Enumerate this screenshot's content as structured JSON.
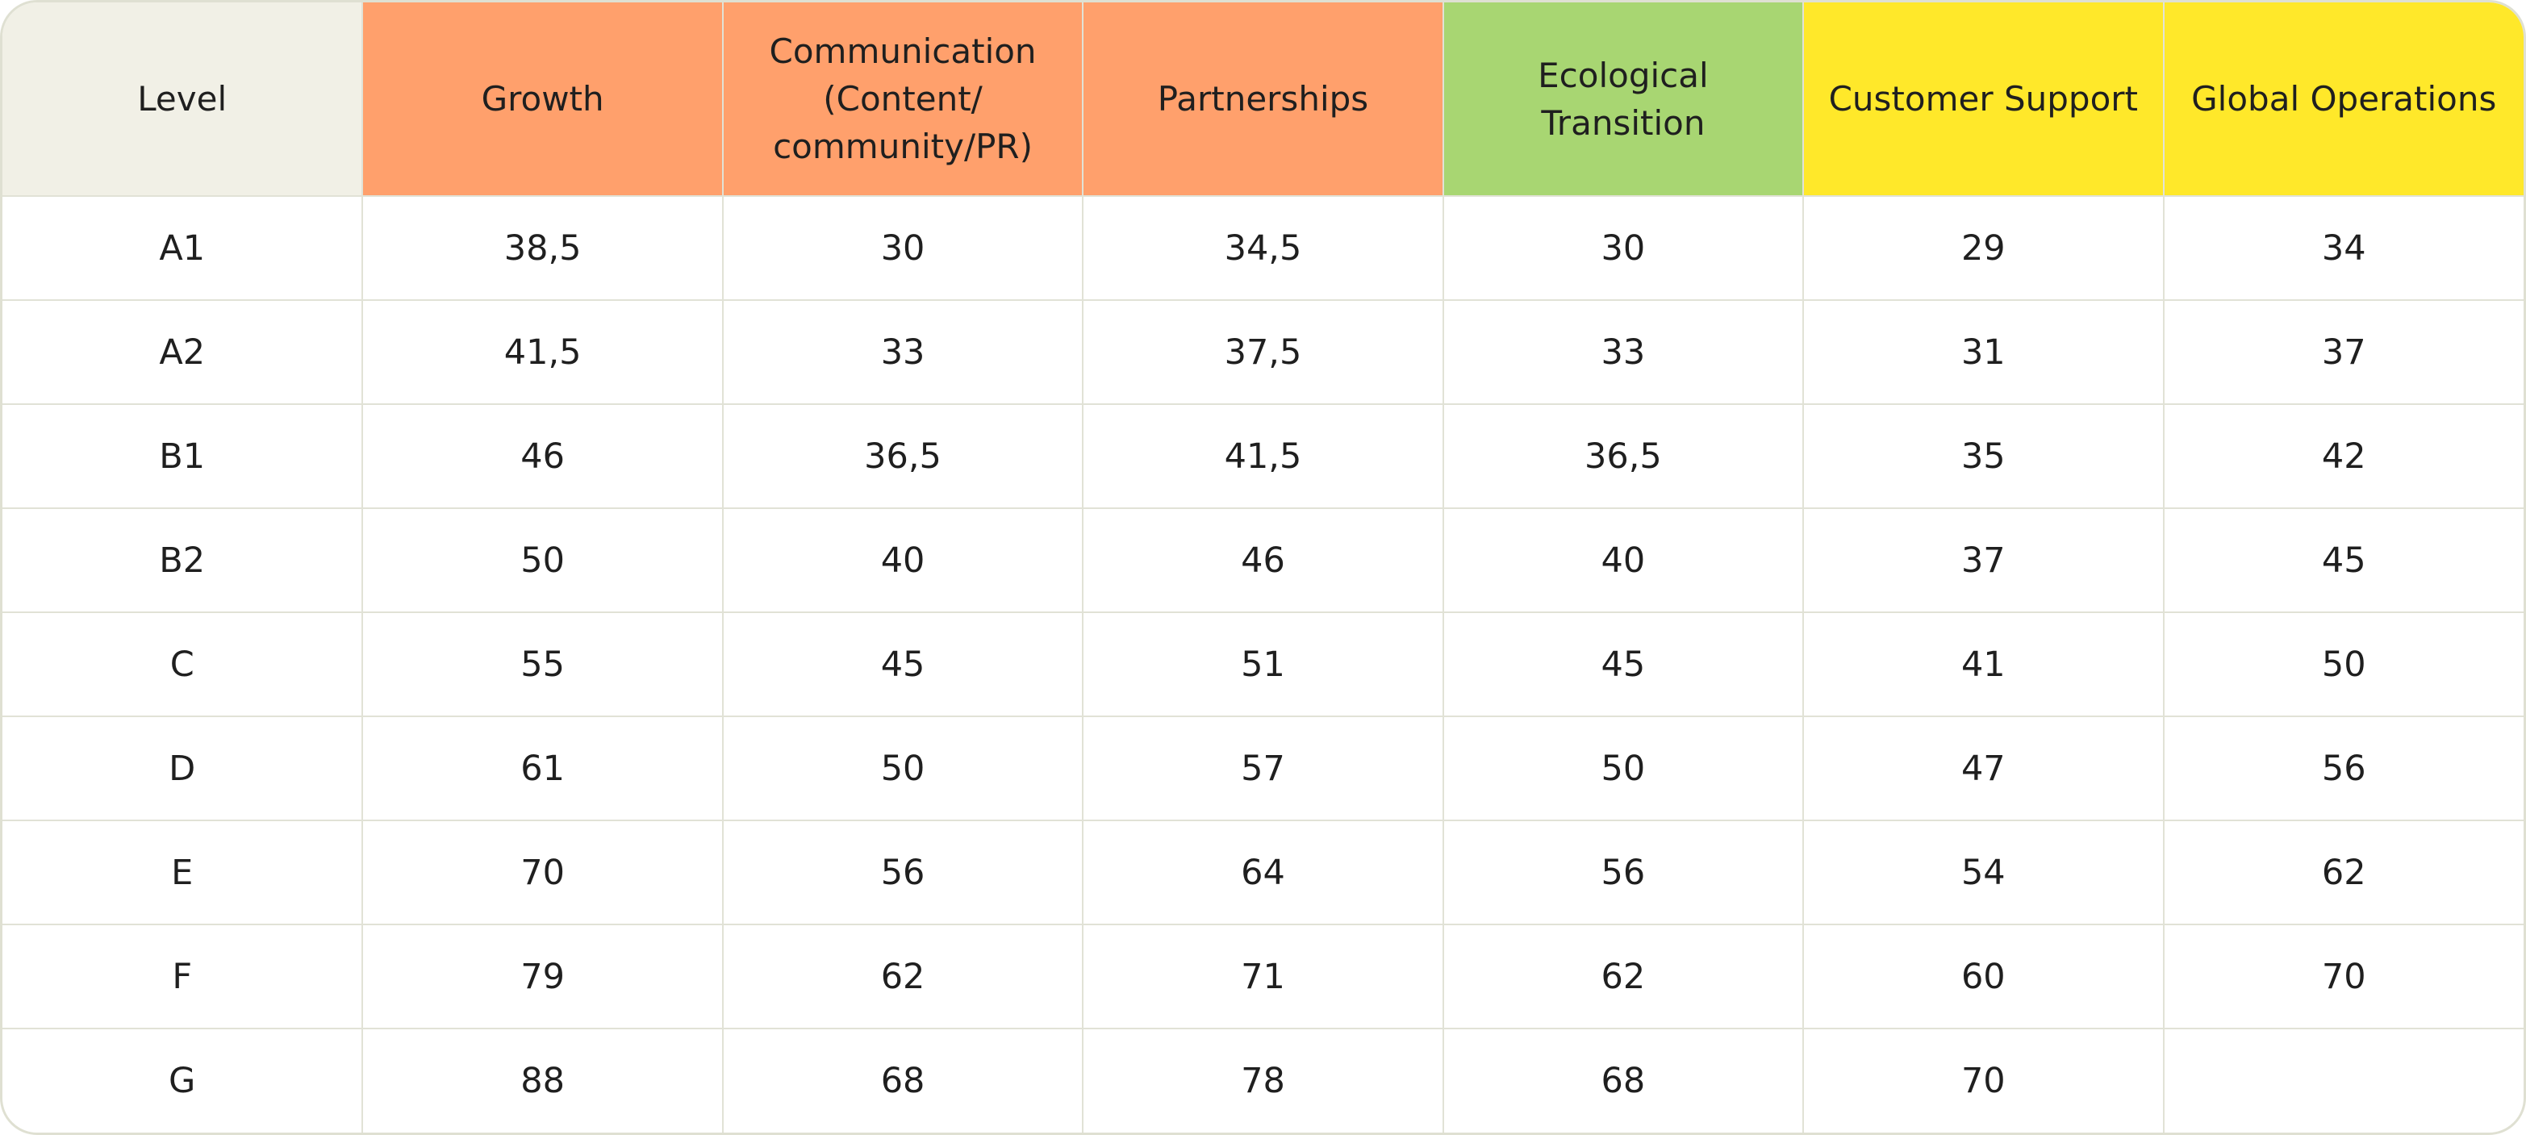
{
  "table": {
    "headers": [
      {
        "label": "Level",
        "color": "#f1f0e6"
      },
      {
        "label": "Growth",
        "color": "#ffa06c"
      },
      {
        "label": "Communication (Content/ community/PR)",
        "color": "#ffa06c"
      },
      {
        "label": "Partnerships",
        "color": "#ffa06c"
      },
      {
        "label": "Ecological Transition",
        "color": "#a8d672"
      },
      {
        "label": "Customer Support",
        "color": "#ffe82a"
      },
      {
        "label": "Global Operations",
        "color": "#ffe82a"
      }
    ],
    "rows": [
      [
        "A1",
        "38,5",
        "30",
        "34,5",
        "30",
        "29",
        "34"
      ],
      [
        "A2",
        "41,5",
        "33",
        "37,5",
        "33",
        "31",
        "37"
      ],
      [
        "B1",
        "46",
        "36,5",
        "41,5",
        "36,5",
        "35",
        "42"
      ],
      [
        "B2",
        "50",
        "40",
        "46",
        "40",
        "37",
        "45"
      ],
      [
        "C",
        "55",
        "45",
        "51",
        "45",
        "41",
        "50"
      ],
      [
        "D",
        "61",
        "50",
        "57",
        "50",
        "47",
        "56"
      ],
      [
        "E",
        "70",
        "56",
        "64",
        "56",
        "54",
        "62"
      ],
      [
        "F",
        "79",
        "62",
        "71",
        "62",
        "60",
        "70"
      ],
      [
        "G",
        "88",
        "68",
        "78",
        "68",
        "70",
        ""
      ]
    ]
  }
}
